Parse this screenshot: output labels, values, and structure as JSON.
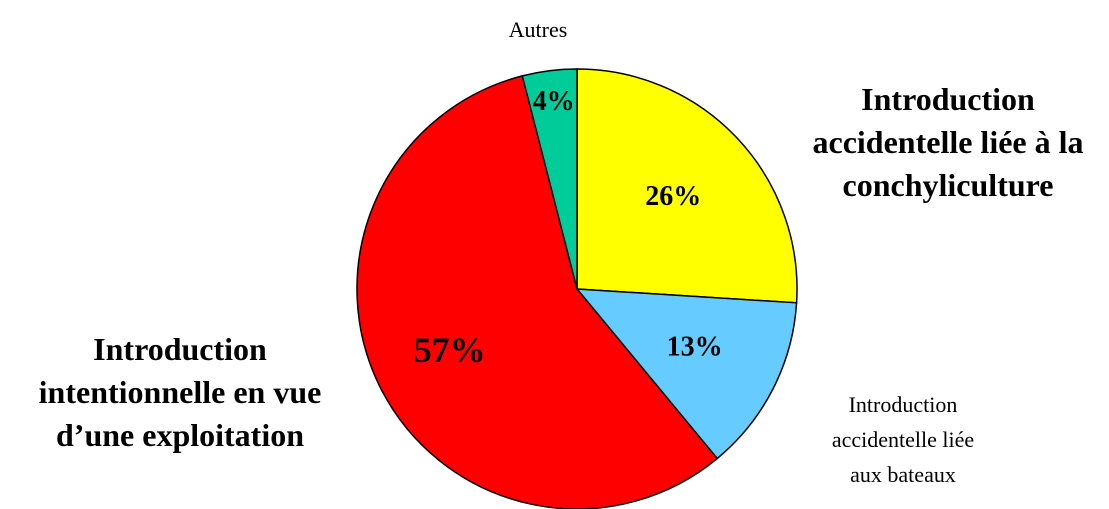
{
  "chart_data": {
    "type": "pie",
    "categories": [
      "Introduction accidentelle liée à la conchyliculture",
      "Introduction accidentelle liée aux bateaux",
      "Introduction intentionnelle en vue d’une exploitation",
      "Autres"
    ],
    "values": [
      26,
      13,
      57,
      4
    ],
    "value_labels": [
      "26%",
      "13%",
      "57%",
      "4%"
    ],
    "colors": [
      "#ffff00",
      "#66ccff",
      "#ff0000",
      "#00cc99"
    ]
  }
}
